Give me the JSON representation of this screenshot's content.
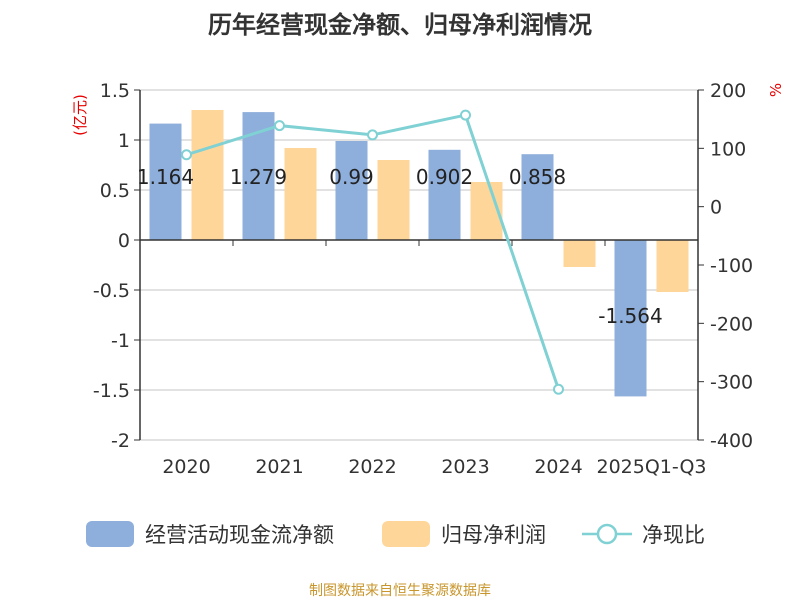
{
  "chart_data": {
    "type": "bar",
    "title": "历年经营现金净额、归母净利润情况",
    "categories": [
      "2020",
      "2021",
      "2022",
      "2023",
      "2024",
      "2025Q1-Q3"
    ],
    "series": [
      {
        "name": "经营活动现金流净额",
        "type": "bar",
        "axis": "left",
        "color": "#8eaedb",
        "values": [
          1.164,
          1.279,
          0.99,
          0.902,
          0.858,
          -1.564
        ],
        "labels": [
          "1.164",
          "1.279",
          "0.99",
          "0.902",
          "0.858",
          "-1.564"
        ]
      },
      {
        "name": "归母净利润",
        "type": "bar",
        "axis": "left",
        "color": "#ffd699",
        "values": [
          1.3,
          0.92,
          0.8,
          0.58,
          -0.27,
          -0.52
        ]
      },
      {
        "name": "净现比",
        "type": "line",
        "axis": "right",
        "color": "#7fd1d4",
        "values": [
          89,
          139,
          123,
          157,
          -313,
          null
        ]
      }
    ],
    "y_left": {
      "unit": "(亿元)",
      "min": -2,
      "max": 1.5,
      "ticks": [
        "1.5",
        "1",
        "0.5",
        "0",
        "-0.5",
        "-1",
        "-1.5",
        "-2"
      ]
    },
    "y_right": {
      "unit": "%",
      "min": -400,
      "max": 200,
      "ticks": [
        "200",
        "100",
        "0",
        "-100",
        "-200",
        "-300",
        "-400"
      ]
    },
    "grid": true,
    "legend": "bottom"
  },
  "footer": {
    "source": "制图数据来自恒生聚源数据库"
  }
}
